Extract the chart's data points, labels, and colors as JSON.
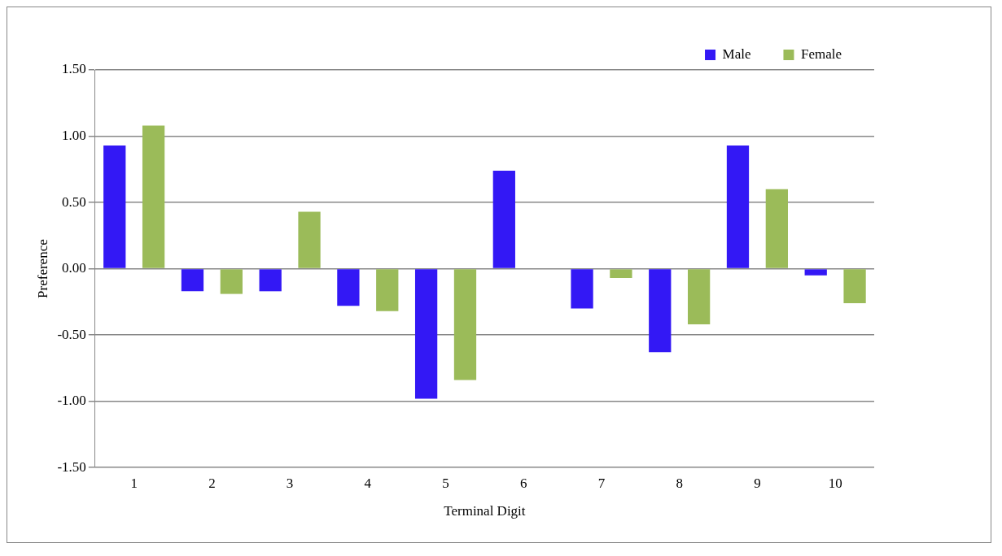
{
  "chart_data": {
    "type": "bar",
    "xlabel": "Terminal Digit",
    "ylabel": "Preference",
    "categories": [
      "1",
      "2",
      "3",
      "4",
      "5",
      "6",
      "7",
      "8",
      "9",
      "10"
    ],
    "series": [
      {
        "name": "Male",
        "color": "#3318f5",
        "values": [
          0.93,
          -0.17,
          -0.17,
          -0.28,
          -0.98,
          0.74,
          -0.3,
          -0.63,
          0.93,
          -0.05
        ]
      },
      {
        "name": "Female",
        "color": "#9bbb59",
        "values": [
          1.08,
          -0.19,
          0.43,
          -0.32,
          -0.84,
          null,
          -0.07,
          -0.42,
          0.6,
          -0.26
        ]
      }
    ],
    "ylim": [
      -1.5,
      1.5
    ],
    "yticks": [
      {
        "value": -1.5,
        "label": "-1.50"
      },
      {
        "value": -1,
        "label": "-1.00"
      },
      {
        "value": -0.5,
        "label": "-0.50"
      },
      {
        "value": 0,
        "label": "0.00"
      },
      {
        "value": 0.5,
        "label": "0.50"
      },
      {
        "value": 1,
        "label": "1.00"
      },
      {
        "value": 1.5,
        "label": "1.50"
      }
    ],
    "grid": "y",
    "legend": "top right"
  }
}
